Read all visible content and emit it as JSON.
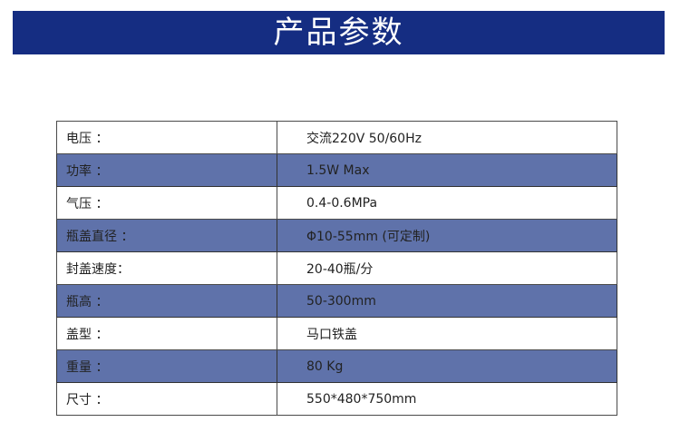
{
  "title": "产品参数",
  "rows": [
    {
      "label": "电压 ：",
      "value": "交流220V 50/60Hz"
    },
    {
      "label": "功率 ：",
      "value": "1.5W Max"
    },
    {
      "label": "气压  ：",
      "value": "0.4-0.6MPa"
    },
    {
      "label": "瓶盖直径 ：",
      "value": "Φ10-55mm (可定制)"
    },
    {
      "label": "封盖速度：",
      "value": "20-40瓶/分"
    },
    {
      "label": "瓶高 ：",
      "value": "50-300mm"
    },
    {
      "label": "盖型 ：",
      "value": "马口铁盖"
    },
    {
      "label": "重量  ：",
      "value": "80 Kg"
    },
    {
      "label": "尺寸 ：",
      "value": "550*480*750mm"
    }
  ],
  "colors": {
    "banner": "#152d82",
    "alt_row": "#5f72aa"
  }
}
